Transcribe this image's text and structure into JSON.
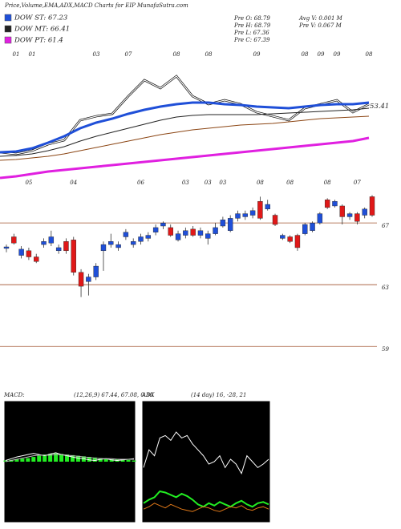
{
  "header": {
    "title": "Price,Volume,EMA,ADX,MACD Charts for EIP MunafaSutra.com",
    "info": [
      "Pre  O: 68.79",
      "Pre  H: 68.79",
      "Pre  L: 67.36",
      "Pre  C: 67.39",
      "Avg  V: 0.001 M",
      "Pre  V: 0.067 M"
    ]
  },
  "chart_data": [
    {
      "type": "line",
      "ylim": [
        45,
        60
      ],
      "last_value": 53.41,
      "categories": [
        null,
        "01",
        "01",
        null,
        null,
        null,
        "03",
        null,
        "07",
        null,
        null,
        "08",
        null,
        "08",
        null,
        null,
        "09",
        null,
        null,
        "08",
        "09",
        "09",
        null,
        "08"
      ],
      "series": [
        {
          "color": "#ffffff",
          "values": [
            48.18,
            48.0,
            48.36,
            49.09,
            49.55,
            51.82,
            52.27,
            52.55,
            54.55,
            56.36,
            55.45,
            56.82,
            54.55,
            53.64,
            54.09,
            53.64,
            52.73,
            52.27,
            51.82,
            53.18,
            53.64,
            54.09,
            52.73,
            53.64
          ]
        },
        {
          "name": "DOW ST: 67.23",
          "color": "#1f4fd8",
          "values": [
            48.18,
            48.27,
            48.64,
            49.27,
            50.0,
            50.91,
            51.55,
            52.0,
            52.55,
            53.0,
            53.36,
            53.64,
            53.82,
            53.82,
            53.64,
            53.55,
            53.36,
            53.27,
            53.18,
            53.36,
            53.55,
            53.64,
            53.64,
            53.82
          ]
        },
        {
          "name": "DOW MT: 66.41",
          "color": "#222222",
          "values": [
            47.73,
            47.82,
            48.0,
            48.36,
            48.82,
            49.45,
            50.0,
            50.45,
            50.91,
            51.36,
            51.82,
            52.18,
            52.36,
            52.45,
            52.45,
            52.45,
            52.45,
            52.55,
            52.64,
            52.73,
            52.82,
            52.91,
            53.0,
            53.18
          ]
        },
        {
          "color": "#8b4513",
          "values": [
            47.27,
            47.36,
            47.55,
            47.73,
            48.0,
            48.36,
            48.73,
            49.09,
            49.45,
            49.82,
            50.18,
            50.45,
            50.73,
            50.91,
            51.09,
            51.27,
            51.36,
            51.45,
            51.64,
            51.82,
            52.0,
            52.09,
            52.18,
            52.27
          ]
        },
        {
          "name": "DOW PT: 61.4",
          "color": "#e020e0",
          "values": [
            45.27,
            45.45,
            45.73,
            46.0,
            46.18,
            46.36,
            46.55,
            46.73,
            46.91,
            47.09,
            47.27,
            47.45,
            47.64,
            47.82,
            48.0,
            48.18,
            48.36,
            48.55,
            48.73,
            48.91,
            49.09,
            49.27,
            49.45,
            49.82
          ]
        }
      ]
    },
    {
      "type": "candlestick",
      "ylim": [
        56,
        69.5
      ],
      "yticks": [
        59,
        63,
        67
      ],
      "grid": true,
      "up_color": "#1f4fd8",
      "down_color": "#e01818",
      "categories": [
        null,
        null,
        null,
        "05",
        null,
        null,
        null,
        null,
        null,
        "04",
        null,
        null,
        null,
        null,
        null,
        null,
        null,
        null,
        "06",
        null,
        null,
        null,
        null,
        null,
        "03",
        null,
        null,
        "03",
        null,
        "03",
        null,
        null,
        null,
        null,
        "08",
        null,
        null,
        null,
        "08",
        null,
        null,
        null,
        null,
        "08",
        null,
        null,
        null,
        "07",
        null,
        null
      ],
      "open": [
        65.35,
        66.1,
        64.9,
        65.2,
        64.8,
        65.6,
        65.7,
        65.2,
        65.8,
        65.9,
        63.8,
        63.2,
        63.5,
        65.2,
        65.6,
        65.4,
        66.1,
        65.6,
        65.8,
        66.0,
        66.4,
        66.8,
        66.7,
        65.9,
        66.2,
        66.6,
        66.2,
        66.0,
        66.3,
        66.8,
        66.5,
        67.3,
        67.4,
        67.5,
        68.4,
        67.9,
        67.5,
        66.0,
        66.1,
        66.2,
        66.3,
        66.5,
        67.0,
        68.5,
        68.1,
        68.1,
        67.4,
        67.6,
        67.5,
        68.7
      ],
      "high": [
        65.6,
        66.3,
        65.5,
        65.4,
        65.0,
        66.0,
        66.5,
        65.6,
        66.0,
        66.1,
        64.0,
        63.7,
        64.4,
        65.8,
        66.3,
        65.8,
        66.6,
        66.0,
        66.3,
        66.4,
        66.9,
        67.1,
        66.9,
        66.5,
        66.7,
        66.8,
        66.7,
        66.5,
        67.0,
        67.4,
        67.5,
        67.8,
        67.8,
        68.0,
        68.7,
        68.5,
        67.6,
        66.3,
        66.2,
        66.3,
        67.0,
        67.1,
        67.7,
        68.6,
        68.5,
        68.2,
        67.7,
        67.7,
        68.0,
        68.8
      ],
      "low": [
        65.1,
        65.6,
        64.7,
        64.6,
        64.4,
        65.4,
        65.5,
        65.0,
        65.0,
        63.6,
        62.2,
        62.3,
        63.3,
        63.9,
        65.4,
        65.2,
        65.9,
        65.4,
        65.6,
        65.8,
        66.2,
        66.6,
        66.1,
        65.8,
        66.0,
        66.1,
        66.0,
        65.6,
        66.2,
        66.7,
        66.4,
        67.1,
        67.2,
        67.3,
        67.2,
        67.8,
        66.8,
        65.9,
        65.7,
        65.2,
        66.2,
        66.4,
        66.9,
        67.9,
        68.0,
        66.9,
        67.2,
        66.9,
        67.3,
        67.4
      ],
      "close": [
        65.45,
        65.7,
        65.3,
        64.8,
        64.5,
        65.8,
        66.1,
        65.4,
        65.2,
        63.8,
        62.9,
        63.5,
        64.2,
        65.6,
        65.8,
        65.6,
        66.4,
        65.8,
        66.1,
        66.2,
        66.7,
        67.0,
        66.2,
        66.3,
        66.5,
        66.2,
        66.5,
        66.3,
        66.7,
        67.2,
        67.3,
        67.6,
        67.6,
        67.8,
        67.3,
        68.2,
        66.9,
        66.2,
        65.8,
        65.4,
        66.9,
        67.0,
        67.6,
        68.0,
        68.4,
        67.4,
        67.6,
        67.1,
        67.9,
        67.5
      ]
    },
    {
      "type": "macd",
      "title": "MACD:",
      "subtitle": "(12,26,9) 67.44, 67.08, 0.36",
      "ylim": [
        -1,
        1
      ],
      "series": [
        {
          "color": "#ffffff",
          "values": [
            0.02,
            0.05,
            0.08,
            0.1,
            0.12,
            0.14,
            0.12,
            0.1,
            0.13,
            0.15,
            0.12,
            0.1,
            0.08,
            0.06,
            0.05,
            0.03,
            0.02,
            0.04,
            0.05,
            0.03,
            0.02,
            0.03,
            0.04,
            0.05
          ]
        },
        {
          "color": "#bbbbbb",
          "values": [
            0.0,
            0.02,
            0.04,
            0.06,
            0.08,
            0.1,
            0.11,
            0.11,
            0.11,
            0.12,
            0.12,
            0.11,
            0.1,
            0.09,
            0.08,
            0.07,
            0.06,
            0.05,
            0.05,
            0.05,
            0.04,
            0.04,
            0.04,
            0.04
          ]
        }
      ],
      "histogram": {
        "color": "#22ee22",
        "values": [
          0.02,
          0.03,
          0.04,
          0.05,
          0.06,
          0.08,
          0.1,
          0.12,
          0.13,
          0.14,
          0.13,
          0.12,
          0.11,
          0.1,
          0.09,
          0.08,
          0.07,
          0.06,
          0.05,
          0.04,
          0.04,
          0.03,
          0.03,
          0.02
        ]
      }
    },
    {
      "type": "adx",
      "title": "ADX",
      "subtitle": "(14 day) 16, -28, 21",
      "ylim": [
        0,
        100
      ],
      "series": [
        {
          "color": "#ffffff",
          "values": [
            45,
            60,
            55,
            70,
            72,
            68,
            75,
            70,
            72,
            65,
            60,
            55,
            48,
            50,
            55,
            45,
            52,
            48,
            40,
            55,
            50,
            45,
            48,
            52
          ]
        },
        {
          "color": "#22ee22",
          "values": [
            15,
            18,
            20,
            25,
            24,
            22,
            20,
            23,
            21,
            18,
            14,
            12,
            15,
            13,
            16,
            14,
            12,
            15,
            17,
            14,
            12,
            15,
            16,
            14
          ]
        },
        {
          "color": "#e07818",
          "values": [
            10,
            12,
            15,
            13,
            11,
            14,
            12,
            10,
            9,
            8,
            10,
            12,
            11,
            9,
            8,
            10,
            12,
            11,
            13,
            10,
            9,
            11,
            12,
            10
          ]
        }
      ]
    }
  ]
}
